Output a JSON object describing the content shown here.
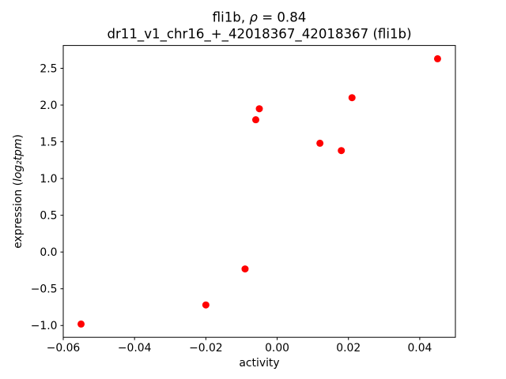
{
  "chart_data": {
    "type": "scatter",
    "title_line1": {
      "pre": "fli1b, ",
      "math": "ρ",
      "post": " = 0.84"
    },
    "title_line2": "dr11_v1_chr16_+_42018367_42018367 (fli1b)",
    "xlabel": "activity",
    "ylabel": {
      "pre": "expression (",
      "math": "log₂tpm",
      "post": ")"
    },
    "xlim": [
      -0.06,
      0.05
    ],
    "ylim": [
      -1.1605,
      2.8105
    ],
    "x_ticks": [
      {
        "value": -0.06,
        "label": "−0.06"
      },
      {
        "value": -0.04,
        "label": "−0.04"
      },
      {
        "value": -0.02,
        "label": "−0.02"
      },
      {
        "value": 0.0,
        "label": "0.00"
      },
      {
        "value": 0.02,
        "label": "0.02"
      },
      {
        "value": 0.04,
        "label": "0.04"
      }
    ],
    "y_ticks": [
      {
        "value": -1.0,
        "label": "−1.0"
      },
      {
        "value": -0.5,
        "label": "−0.5"
      },
      {
        "value": 0.0,
        "label": "0.0"
      },
      {
        "value": 0.5,
        "label": "0.5"
      },
      {
        "value": 1.0,
        "label": "1.0"
      },
      {
        "value": 1.5,
        "label": "1.5"
      },
      {
        "value": 2.0,
        "label": "2.0"
      },
      {
        "value": 2.5,
        "label": "2.5"
      }
    ],
    "points": [
      {
        "x": -0.055,
        "y": -0.98
      },
      {
        "x": -0.02,
        "y": -0.72
      },
      {
        "x": -0.009,
        "y": -0.23
      },
      {
        "x": -0.006,
        "y": 1.8
      },
      {
        "x": -0.005,
        "y": 1.95
      },
      {
        "x": 0.012,
        "y": 1.48
      },
      {
        "x": 0.018,
        "y": 1.38
      },
      {
        "x": 0.021,
        "y": 2.1
      },
      {
        "x": 0.045,
        "y": 2.63
      }
    ],
    "marker_color": "#ff0000",
    "marker_radius": 4.5,
    "axes_color": "#000000",
    "background": "#ffffff",
    "grid": "off",
    "legend": "none"
  }
}
